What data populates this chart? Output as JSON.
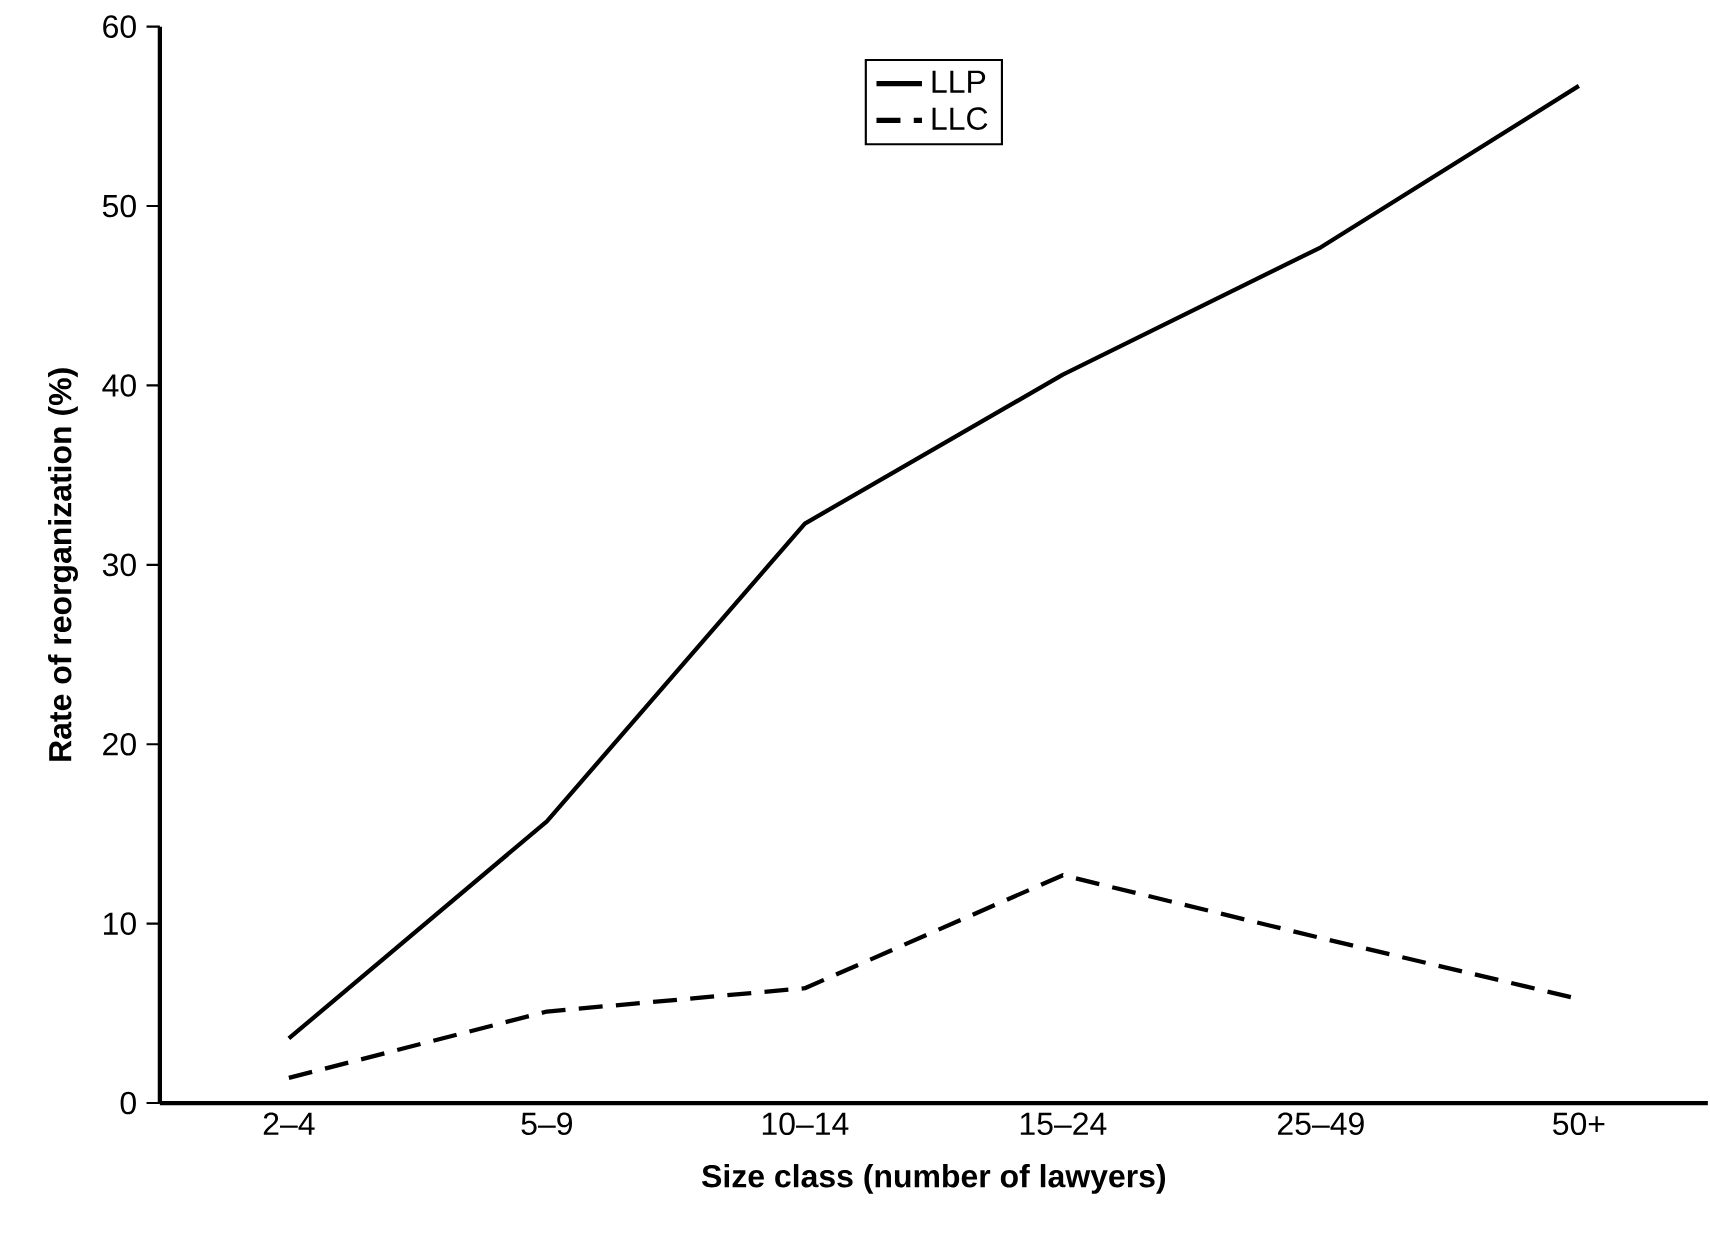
{
  "chart_data": {
    "type": "line",
    "xlabel": "Size class (number of lawyers)",
    "ylabel": "Rate of reorganization (%)",
    "categories": [
      "2–4",
      "5–9",
      "10–14",
      "15–24",
      "25–49",
      "50+"
    ],
    "series": [
      {
        "name": "LLP",
        "color": "#000000",
        "line_style": "solid",
        "values": [
          3.6,
          15.7,
          32.3,
          40.6,
          47.7,
          56.7
        ]
      },
      {
        "name": "LLC",
        "color": "#000000",
        "line_style": "dashed",
        "values": [
          1.4,
          5.1,
          6.4,
          12.7,
          9.2,
          5.8
        ]
      }
    ],
    "ylim": [
      0,
      60
    ],
    "yticks": [
      0,
      10,
      20,
      30,
      40,
      50,
      60
    ],
    "legend": "top",
    "marker": "none",
    "grid": false
  }
}
